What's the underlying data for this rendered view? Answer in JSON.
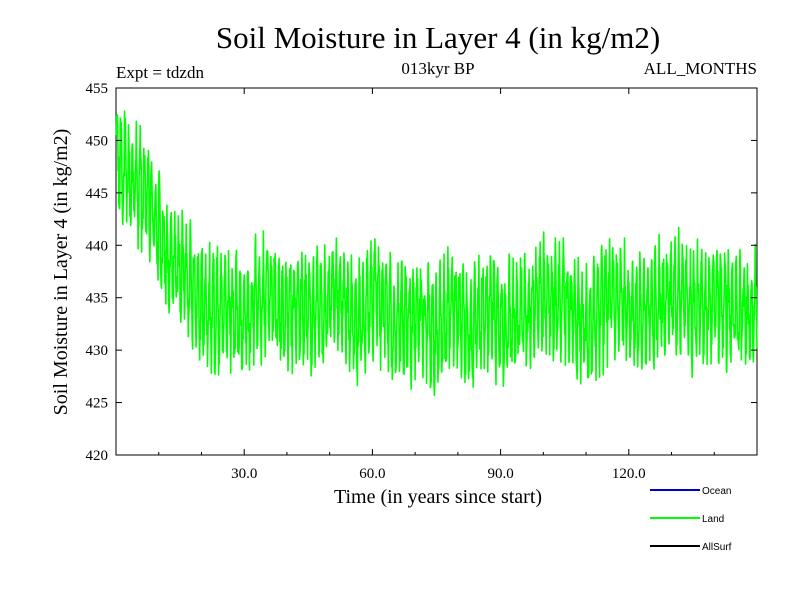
{
  "chart_data": {
    "type": "line",
    "title": "Soil Moisture in Layer 4 (in kg/m2)",
    "subtitle": "013kyr BP",
    "left_label": "Expt = tdzdn",
    "right_label": "ALL_MONTHS",
    "xlabel": "Time (in years since start)",
    "ylabel": "Soil Moisture in Layer 4 (in kg/m2)",
    "xlim": [
      0,
      150
    ],
    "ylim": [
      420,
      455
    ],
    "x_ticks": [
      30,
      60,
      90,
      120
    ],
    "x_tick_labels": [
      "30.0",
      "60.0",
      "90.0",
      "120.0"
    ],
    "y_ticks": [
      420,
      425,
      430,
      435,
      440,
      445,
      450,
      455
    ],
    "y_tick_labels": [
      "420",
      "425",
      "430",
      "435",
      "440",
      "445",
      "450",
      "455"
    ],
    "series": [
      {
        "name": "Land",
        "color": "#00ff00",
        "points_per_year": 12,
        "annual_x": [
          0,
          1,
          2,
          3,
          4,
          5,
          6,
          7,
          8,
          9,
          10,
          11,
          12,
          13,
          14,
          15,
          16,
          17,
          18,
          19,
          20,
          21,
          22,
          23,
          24,
          25,
          26,
          27,
          28,
          29,
          30,
          31,
          32,
          33,
          34,
          35,
          36,
          37,
          38,
          39,
          40,
          41,
          42,
          43,
          44,
          45,
          46,
          47,
          48,
          49,
          50,
          51,
          52,
          53,
          54,
          55,
          56,
          57,
          58,
          59,
          60,
          61,
          62,
          63,
          64,
          65,
          66,
          67,
          68,
          69,
          70,
          71,
          72,
          73,
          74,
          75,
          76,
          77,
          78,
          79,
          80,
          81,
          82,
          83,
          84,
          85,
          86,
          87,
          88,
          89,
          90,
          91,
          92,
          93,
          94,
          95,
          96,
          97,
          98,
          99,
          100,
          101,
          102,
          103,
          104,
          105,
          106,
          107,
          108,
          109,
          110,
          111,
          112,
          113,
          114,
          115,
          116,
          117,
          118,
          119,
          120,
          121,
          122,
          123,
          124,
          125,
          126,
          127,
          128,
          129,
          130,
          131,
          132,
          133,
          134,
          135,
          136,
          137,
          138,
          139,
          140,
          141,
          142,
          143,
          144,
          145,
          146,
          147,
          148,
          149,
          150
        ],
        "annual_mean": [
          448.5,
          448.0,
          447.5,
          447.0,
          446.5,
          446.0,
          445.0,
          444.0,
          443.5,
          442.5,
          441.5,
          440.0,
          439.0,
          438.5,
          438.0,
          437.5,
          437.0,
          436.5,
          436.0,
          435.5,
          435.0,
          434.5,
          434.0,
          433.8,
          433.6,
          433.5,
          433.4,
          433.5,
          433.6,
          433.8,
          434.0,
          434.2,
          434.5,
          434.8,
          435.0,
          435.2,
          435.0,
          434.8,
          434.5,
          434.2,
          434.0,
          433.8,
          433.6,
          433.5,
          433.5,
          433.6,
          433.8,
          434.0,
          434.2,
          434.5,
          434.5,
          434.3,
          434.0,
          433.8,
          433.5,
          433.0,
          432.8,
          433.0,
          433.5,
          434.0,
          434.5,
          434.8,
          434.5,
          434.0,
          433.5,
          433.0,
          432.8,
          432.5,
          432.5,
          432.8,
          433.0,
          433.2,
          433.0,
          432.5,
          432.0,
          432.0,
          432.5,
          433.0,
          433.5,
          433.8,
          433.5,
          433.0,
          432.5,
          432.0,
          432.5,
          433.0,
          433.5,
          433.8,
          433.5,
          433.0,
          432.5,
          432.5,
          433.0,
          433.5,
          433.5,
          433.0,
          433.0,
          433.5,
          434.0,
          434.5,
          435.0,
          435.5,
          435.5,
          435.0,
          434.5,
          434.0,
          433.8,
          433.5,
          433.0,
          432.8,
          432.5,
          432.5,
          433.0,
          433.5,
          434.0,
          434.5,
          434.8,
          435.0,
          435.0,
          434.8,
          434.5,
          434.0,
          433.5,
          433.0,
          433.0,
          433.5,
          434.0,
          434.5,
          435.0,
          435.5,
          435.8,
          435.5,
          435.0,
          434.5,
          434.0,
          433.8,
          434.0,
          434.5,
          435.0,
          435.2,
          435.0,
          434.5,
          434.0,
          433.8,
          433.5,
          433.5,
          433.8,
          434.0,
          434.2,
          434.0,
          433.8
        ],
        "seasonal_amplitude": 4.2,
        "noise_amplitude": 2.4
      }
    ],
    "legend": {
      "position": "bottom-right",
      "entries": [
        {
          "label": "Ocean",
          "color": "#0000cc"
        },
        {
          "label": "Land",
          "color": "#00ff00"
        },
        {
          "label": "AllSurf",
          "color": "#000000"
        }
      ]
    }
  }
}
